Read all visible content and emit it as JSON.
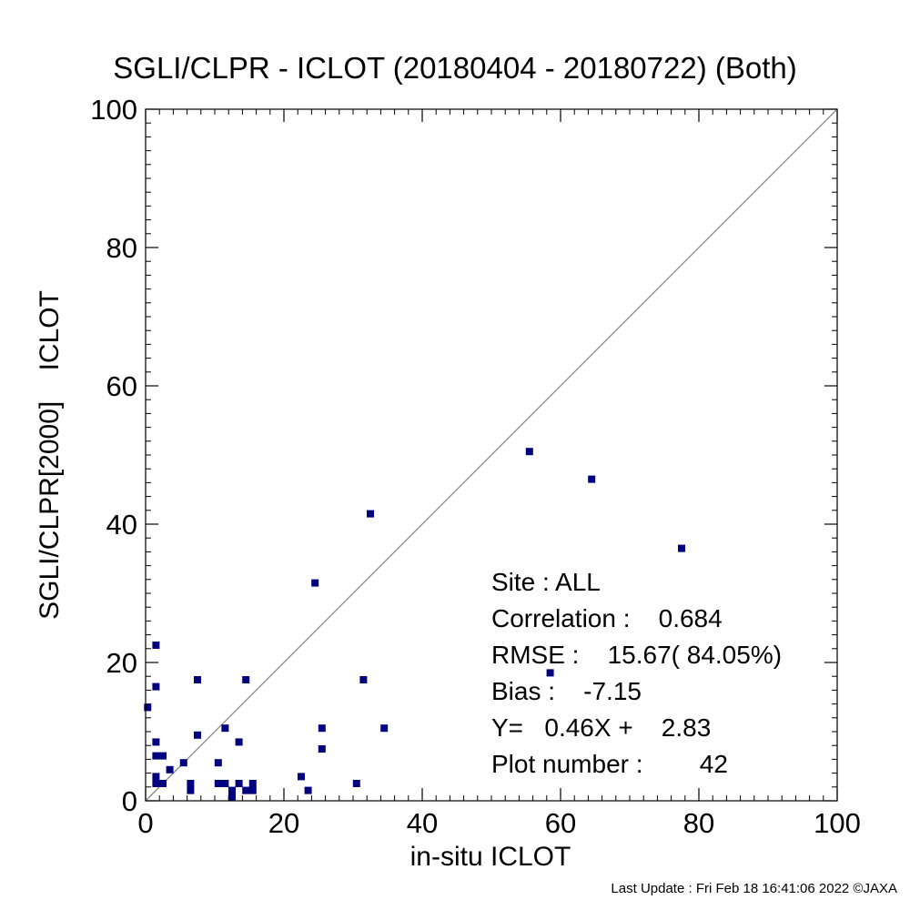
{
  "chart_data": {
    "type": "scatter",
    "title": "SGLI/CLPR - ICLOT (20180404 - 20180722) (Both)",
    "xlabel": "in-situ ICLOT",
    "ylabel": "SGLI/CLPR[2000]    ICLOT",
    "xlim": [
      0,
      100
    ],
    "ylim": [
      0,
      100
    ],
    "xticks": [
      0,
      20,
      40,
      60,
      80,
      100
    ],
    "yticks": [
      0,
      20,
      40,
      60,
      80,
      100
    ],
    "grid": false,
    "reference_line": "y = x",
    "marker_color": "#00007f",
    "stats": [
      "Site : ALL",
      "Correlation :    0.684",
      "RMSE :    15.67( 84.05%)",
      "Bias :    -7.15",
      "Y=   0.46X +    2.83",
      "Plot number :        42"
    ],
    "points": [
      {
        "x": 0.3,
        "y": 13.5
      },
      {
        "x": 1.5,
        "y": 22.5
      },
      {
        "x": 1.5,
        "y": 16.5
      },
      {
        "x": 1.5,
        "y": 8.5
      },
      {
        "x": 1.5,
        "y": 6.5
      },
      {
        "x": 1.5,
        "y": 3.5
      },
      {
        "x": 1.5,
        "y": 2.5
      },
      {
        "x": 2.5,
        "y": 6.5
      },
      {
        "x": 2.5,
        "y": 2.5
      },
      {
        "x": 3.5,
        "y": 4.5
      },
      {
        "x": 5.5,
        "y": 5.5
      },
      {
        "x": 6.5,
        "y": 2.5
      },
      {
        "x": 6.5,
        "y": 1.5
      },
      {
        "x": 7.5,
        "y": 17.5
      },
      {
        "x": 7.5,
        "y": 9.5
      },
      {
        "x": 10.5,
        "y": 5.5
      },
      {
        "x": 10.5,
        "y": 2.5
      },
      {
        "x": 11.5,
        "y": 10.5
      },
      {
        "x": 11.5,
        "y": 2.5
      },
      {
        "x": 12.5,
        "y": 1.5
      },
      {
        "x": 12.5,
        "y": 0.5
      },
      {
        "x": 13.5,
        "y": 8.5
      },
      {
        "x": 13.5,
        "y": 2.5
      },
      {
        "x": 14.5,
        "y": 17.5
      },
      {
        "x": 14.5,
        "y": 1.5
      },
      {
        "x": 15.5,
        "y": 2.5
      },
      {
        "x": 15.5,
        "y": 1.5
      },
      {
        "x": 22.5,
        "y": 3.5
      },
      {
        "x": 23.5,
        "y": 1.5
      },
      {
        "x": 24.5,
        "y": 31.5
      },
      {
        "x": 25.5,
        "y": 10.5
      },
      {
        "x": 25.5,
        "y": 7.5
      },
      {
        "x": 30.5,
        "y": 2.5
      },
      {
        "x": 31.5,
        "y": 17.5
      },
      {
        "x": 32.5,
        "y": 41.5
      },
      {
        "x": 34.5,
        "y": 10.5
      },
      {
        "x": 55.5,
        "y": 50.5
      },
      {
        "x": 58.5,
        "y": 18.5
      },
      {
        "x": 64.5,
        "y": 46.5
      },
      {
        "x": 77.5,
        "y": 36.5
      }
    ]
  },
  "footer": "Last Update : Fri Feb 18 16:41:06 2022  ©JAXA"
}
